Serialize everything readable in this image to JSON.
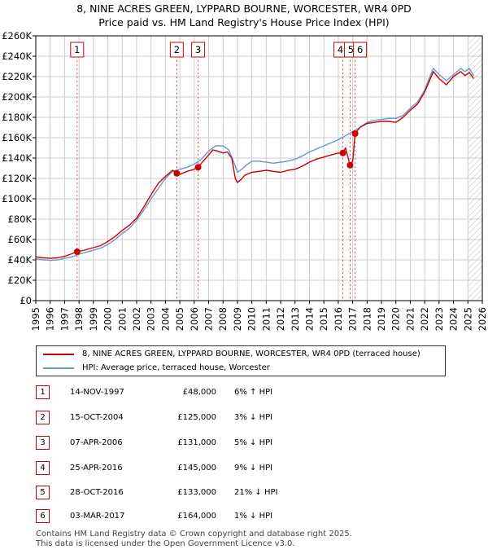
{
  "title": {
    "line1": "8, NINE ACRES GREEN, LYPPARD BOURNE, WORCESTER, WR4 0PD",
    "line2": "Price paid vs. HM Land Registry's House Price Index (HPI)"
  },
  "colors": {
    "price_line": "#cc0000",
    "hpi_line": "#6699cc",
    "grid": "#cccccc",
    "future_hatch": "#999999"
  },
  "legend": {
    "price_label": "8, NINE ACRES GREEN, LYPPARD BOURNE, WORCESTER, WR4 0PD (terraced house)",
    "hpi_label": "HPI: Average price, terraced house, Worcester"
  },
  "sales": [
    {
      "num": "1",
      "date": "14-NOV-1997",
      "price": "£48,000",
      "hpi": "6% ↑ HPI"
    },
    {
      "num": "2",
      "date": "15-OCT-2004",
      "price": "£125,000",
      "hpi": "3% ↓ HPI"
    },
    {
      "num": "3",
      "date": "07-APR-2006",
      "price": "£131,000",
      "hpi": "5% ↓ HPI"
    },
    {
      "num": "4",
      "date": "25-APR-2016",
      "price": "£145,000",
      "hpi": "9% ↓ HPI"
    },
    {
      "num": "5",
      "date": "28-OCT-2016",
      "price": "£133,000",
      "hpi": "21% ↓ HPI"
    },
    {
      "num": "6",
      "date": "03-MAR-2017",
      "price": "£164,000",
      "hpi": "1% ↓ HPI"
    }
  ],
  "footer": {
    "line1": "Contains HM Land Registry data © Crown copyright and database right 2025.",
    "line2": "This data is licensed under the Open Government Licence v3.0."
  },
  "chart_data": {
    "type": "line",
    "title": "Price paid vs. HM Land Registry's House Price Index (HPI)",
    "xlabel": "",
    "ylabel": "",
    "xlim": [
      1995,
      2026
    ],
    "ylim": [
      0,
      260000
    ],
    "grid": true,
    "legend_position": "bottom",
    "x_ticks": [
      1995,
      1996,
      1997,
      1998,
      1999,
      2000,
      2001,
      2002,
      2003,
      2004,
      2005,
      2006,
      2007,
      2008,
      2009,
      2010,
      2011,
      2012,
      2013,
      2014,
      2015,
      2016,
      2017,
      2018,
      2019,
      2020,
      2021,
      2022,
      2023,
      2024,
      2025,
      2026
    ],
    "x_tick_labels": [
      "1995",
      "1996",
      "1997",
      "1998",
      "1999",
      "2000",
      "2001",
      "2002",
      "2003",
      "2004",
      "2005",
      "2006",
      "2007",
      "2008",
      "2009",
      "2010",
      "2011",
      "2012",
      "2013",
      "2014",
      "2015",
      "2016",
      "2017",
      "2018",
      "2019",
      "2020",
      "2021",
      "2022",
      "2023",
      "2024",
      "2025",
      "2026"
    ],
    "y_ticks": [
      0,
      20000,
      40000,
      60000,
      80000,
      100000,
      120000,
      140000,
      160000,
      180000,
      200000,
      220000,
      240000,
      260000
    ],
    "y_tick_labels": [
      "£0",
      "£20K",
      "£40K",
      "£60K",
      "£80K",
      "£100K",
      "£120K",
      "£140K",
      "£160K",
      "£180K",
      "£200K",
      "£220K",
      "£240K",
      "£260K"
    ],
    "future_start": 2025.0,
    "series": [
      {
        "name": "8, NINE ACRES GREEN, LYPPARD BOURNE, WORCESTER, WR4 0PD (terraced house)",
        "color": "#cc0000",
        "x": [
          1995.0,
          1995.5,
          1996.0,
          1996.5,
          1997.0,
          1997.5,
          1997.87,
          1998.5,
          1999.0,
          1999.5,
          2000.0,
          2000.5,
          2001.0,
          2001.5,
          2002.0,
          2002.5,
          2003.0,
          2003.5,
          2004.0,
          2004.5,
          2004.79,
          2005.0,
          2005.5,
          2006.0,
          2006.27,
          2006.5,
          2007.0,
          2007.3,
          2007.6,
          2008.0,
          2008.3,
          2008.6,
          2008.85,
          2009.0,
          2009.25,
          2009.5,
          2010.0,
          2010.5,
          2011.0,
          2011.5,
          2012.0,
          2012.5,
          2013.0,
          2013.5,
          2014.0,
          2014.5,
          2015.0,
          2015.5,
          2016.0,
          2016.32,
          2016.5,
          2016.82,
          2017.0,
          2017.17,
          2017.5,
          2018.0,
          2018.5,
          2019.0,
          2019.5,
          2020.0,
          2020.5,
          2021.0,
          2021.5,
          2022.0,
          2022.3,
          2022.6,
          2023.0,
          2023.5,
          2024.0,
          2024.5,
          2024.8,
          2025.1,
          2025.4
        ],
        "y": [
          43000,
          42000,
          41500,
          42000,
          43500,
          46000,
          48000,
          50000,
          52000,
          54000,
          58000,
          63000,
          69000,
          74000,
          81000,
          92000,
          104000,
          115000,
          122000,
          128000,
          125000,
          124000,
          127000,
          129000,
          131000,
          135000,
          143000,
          148000,
          147000,
          145000,
          146000,
          140000,
          120000,
          116000,
          119000,
          123000,
          126000,
          127000,
          128000,
          127000,
          126000,
          128000,
          129000,
          132000,
          136000,
          139000,
          141000,
          143000,
          145000,
          145000,
          150000,
          133000,
          137000,
          164000,
          170000,
          174000,
          175000,
          176000,
          176000,
          175000,
          180000,
          187000,
          193000,
          205000,
          215000,
          225000,
          218000,
          212000,
          220000,
          225000,
          221000,
          224000,
          218000
        ]
      },
      {
        "name": "HPI: Average price, terraced house, Worcester",
        "color": "#6699cc",
        "x": [
          1995.0,
          1995.5,
          1996.0,
          1996.5,
          1997.0,
          1997.5,
          1998.0,
          1998.5,
          1999.0,
          1999.5,
          2000.0,
          2000.5,
          2001.0,
          2001.5,
          2002.0,
          2002.5,
          2003.0,
          2003.5,
          2004.0,
          2004.5,
          2005.0,
          2005.5,
          2006.0,
          2006.5,
          2007.0,
          2007.5,
          2008.0,
          2008.4,
          2008.8,
          2009.0,
          2009.3,
          2009.6,
          2010.0,
          2010.5,
          2011.0,
          2011.5,
          2012.0,
          2012.5,
          2013.0,
          2013.5,
          2014.0,
          2014.5,
          2015.0,
          2015.5,
          2016.0,
          2016.5,
          2017.0,
          2017.5,
          2018.0,
          2018.5,
          2019.0,
          2019.5,
          2020.0,
          2020.5,
          2021.0,
          2021.5,
          2022.0,
          2022.3,
          2022.6,
          2023.0,
          2023.5,
          2024.0,
          2024.5,
          2024.8,
          2025.1,
          2025.4
        ],
        "y": [
          41000,
          40000,
          39500,
          40000,
          41500,
          43000,
          45500,
          47500,
          49500,
          51500,
          55000,
          60000,
          66000,
          71000,
          79000,
          89000,
          100000,
          110000,
          120000,
          127000,
          129000,
          131000,
          134000,
          139000,
          147000,
          152000,
          152000,
          148000,
          134000,
          126000,
          129000,
          133000,
          137000,
          137000,
          136000,
          135000,
          136000,
          137000,
          139000,
          142000,
          146000,
          149000,
          152000,
          155000,
          158000,
          162000,
          166000,
          170000,
          175000,
          177000,
          178000,
          179000,
          179000,
          182000,
          189000,
          195000,
          207000,
          218000,
          228000,
          222000,
          216000,
          222000,
          228000,
          225000,
          228000,
          221000
        ]
      }
    ],
    "sale_points": [
      {
        "label": "1",
        "x": 1997.87,
        "y": 48000
      },
      {
        "label": "2",
        "x": 2004.79,
        "y": 125000
      },
      {
        "label": "3",
        "x": 2006.27,
        "y": 131000
      },
      {
        "label": "4",
        "x": 2016.32,
        "y": 145000
      },
      {
        "label": "5",
        "x": 2016.82,
        "y": 133000
      },
      {
        "label": "6",
        "x": 2017.17,
        "y": 164000
      }
    ]
  }
}
